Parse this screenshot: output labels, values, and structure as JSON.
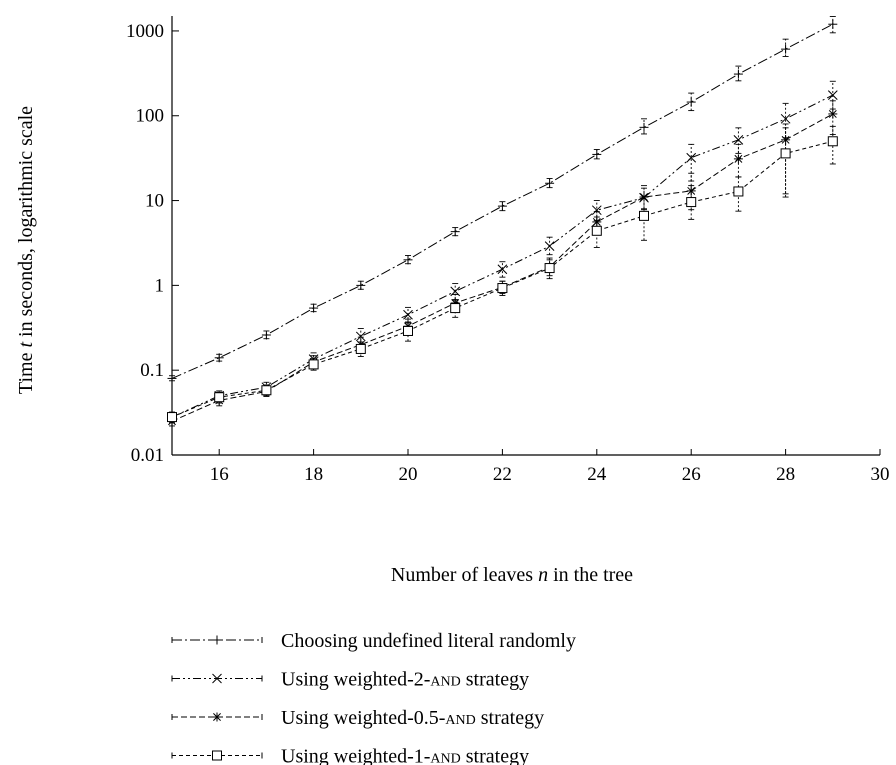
{
  "chart_data": {
    "type": "line",
    "title": "",
    "xlabel": {
      "pre": "Number of leaves ",
      "var": "n",
      "post": " in the tree"
    },
    "ylabel": {
      "pre": "Time ",
      "var": "t",
      "post": " in seconds, logarithmic scale"
    },
    "xlim": [
      15,
      30
    ],
    "ylim": [
      0.01,
      1500
    ],
    "yscale": "log",
    "xticks": [
      16,
      18,
      20,
      22,
      24,
      26,
      28,
      30
    ],
    "yticks": [
      0.01,
      0.1,
      1,
      10,
      100,
      1000
    ],
    "ytick_labels": [
      "0.01",
      "0.1",
      "1",
      "10",
      "100",
      "1000"
    ],
    "grid": false,
    "legend_position": "below",
    "x": [
      15,
      16,
      17,
      18,
      19,
      20,
      21,
      22,
      23,
      24,
      25,
      26,
      27,
      28,
      29
    ],
    "series": [
      {
        "name": "Choosing undefined literal randomly",
        "name_parts": {
          "pre": "Choosing undefined literal randomly",
          "sc": "",
          "post": ""
        },
        "marker": "plus",
        "dash": "10,3,2,3",
        "values": [
          0.08,
          0.14,
          0.26,
          0.54,
          1.0,
          2.0,
          4.3,
          8.6,
          16,
          35,
          73,
          145,
          310,
          610,
          1200
        ],
        "err_low": [
          0.075,
          0.128,
          0.235,
          0.49,
          0.9,
          1.8,
          3.85,
          7.6,
          14.2,
          31,
          61,
          115,
          258,
          500,
          950
        ],
        "err_high": [
          0.086,
          0.154,
          0.29,
          0.6,
          1.12,
          2.25,
          4.8,
          9.7,
          18.2,
          40,
          92,
          185,
          385,
          800,
          1480
        ]
      },
      {
        "name": "Using weighted-2-AND strategy",
        "name_parts": {
          "pre": "Using weighted-2-",
          "sc": "and",
          "post": " strategy"
        },
        "marker": "x",
        "dash": "8,3,2,3,2,3",
        "values": [
          0.028,
          0.05,
          0.063,
          0.135,
          0.25,
          0.45,
          0.85,
          1.55,
          2.9,
          7.7,
          10.8,
          32,
          52,
          92,
          175
        ],
        "err_low": [
          0.024,
          0.043,
          0.055,
          0.115,
          0.2,
          0.36,
          0.68,
          1.25,
          2.3,
          5.8,
          8.0,
          17,
          36,
          55,
          120
        ],
        "err_high": [
          0.032,
          0.057,
          0.072,
          0.16,
          0.31,
          0.55,
          1.05,
          1.9,
          3.7,
          10,
          14,
          46,
          72,
          140,
          255
        ]
      },
      {
        "name": "Using weighted-0.5-AND strategy",
        "name_parts": {
          "pre": "Using weighted-0.5-",
          "sc": "and",
          "post": " strategy"
        },
        "marker": "asterisk",
        "dash": "6,3",
        "values": [
          0.025,
          0.044,
          0.056,
          0.125,
          0.2,
          0.33,
          0.62,
          0.95,
          1.65,
          5.6,
          11,
          13,
          31,
          52,
          105
        ],
        "err_low": [
          0.022,
          0.038,
          0.049,
          0.106,
          0.165,
          0.27,
          0.5,
          0.8,
          1.3,
          4.1,
          7.8,
          7.8,
          19,
          11,
          60
        ],
        "err_high": [
          0.029,
          0.051,
          0.064,
          0.148,
          0.245,
          0.4,
          0.78,
          1.12,
          2.1,
          7.4,
          15,
          21,
          46,
          80,
          150
        ]
      },
      {
        "name": "Using weighted-1-AND strategy",
        "name_parts": {
          "pre": "Using weighted-1-",
          "sc": "and",
          "post": " strategy"
        },
        "marker": "square",
        "dash": "4,3",
        "values": [
          0.028,
          0.048,
          0.058,
          0.117,
          0.178,
          0.29,
          0.54,
          0.93,
          1.6,
          4.4,
          6.6,
          9.6,
          12.8,
          36,
          50
        ],
        "err_low": [
          0.024,
          0.041,
          0.05,
          0.1,
          0.145,
          0.22,
          0.42,
          0.76,
          1.2,
          2.8,
          3.4,
          6.0,
          7.5,
          12,
          27
        ],
        "err_high": [
          0.032,
          0.055,
          0.067,
          0.138,
          0.215,
          0.37,
          0.67,
          1.12,
          2.0,
          6.4,
          11,
          15,
          19,
          72,
          75
        ]
      }
    ]
  }
}
